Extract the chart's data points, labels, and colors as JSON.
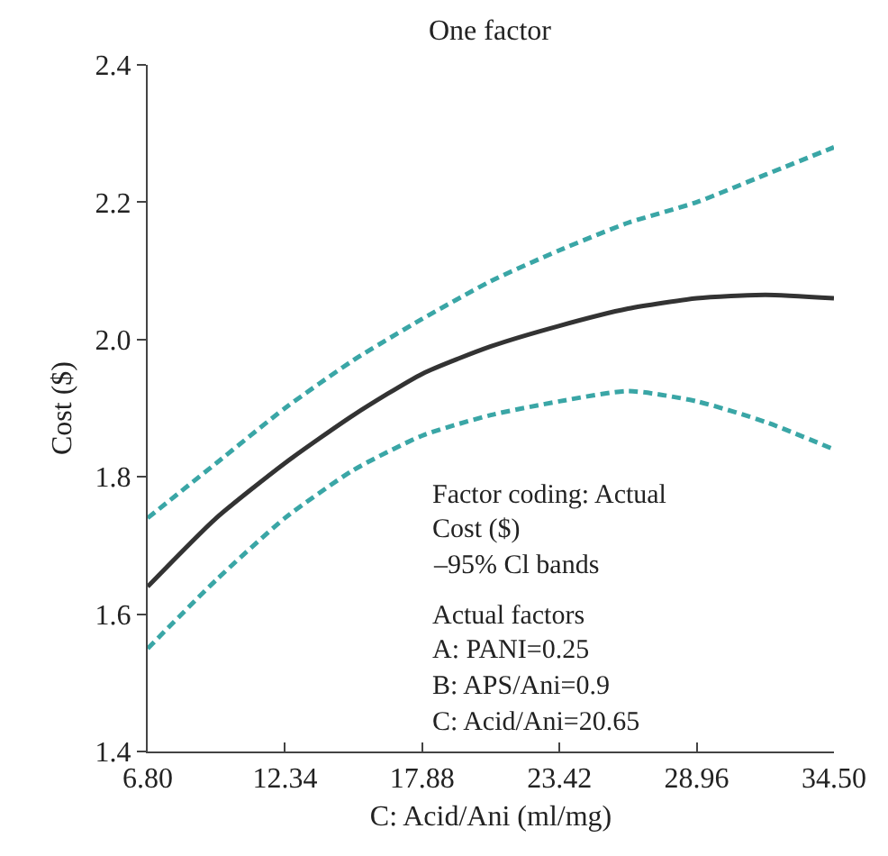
{
  "chart_data": {
    "type": "line",
    "title": "One factor",
    "xlabel": "C: Acid/Ani (ml/mg)",
    "ylabel": "Cost ($)",
    "x": [
      6.8,
      9.57,
      12.34,
      15.11,
      17.88,
      20.65,
      23.42,
      26.19,
      28.96,
      31.73,
      34.5
    ],
    "series": [
      {
        "color": "#333333",
        "line_style": "solid",
        "values": [
          1.64,
          1.74,
          1.82,
          1.89,
          1.95,
          1.99,
          2.02,
          2.045,
          2.06,
          2.065,
          2.06
        ]
      },
      {
        "color": "#3aa6a6",
        "line_style": "dashed",
        "values": [
          1.74,
          1.82,
          1.9,
          1.97,
          2.03,
          2.085,
          2.13,
          2.17,
          2.2,
          2.24,
          2.28
        ]
      },
      {
        "color": "#3aa6a6",
        "line_style": "dashed",
        "values": [
          1.55,
          1.65,
          1.74,
          1.81,
          1.86,
          1.89,
          1.91,
          1.925,
          1.91,
          1.88,
          1.84
        ]
      }
    ],
    "xlim": [
      6.8,
      34.5
    ],
    "xticks": [
      {
        "value": 6.8,
        "label": "6.80"
      },
      12.34,
      17.88,
      23.42,
      28.96,
      {
        "value": 34.5,
        "label": "34.50"
      }
    ],
    "ylim": [
      1.4,
      2.4
    ],
    "yticks": [
      1.4,
      1.6,
      1.8,
      {
        "value": 2,
        "label": "2.0"
      },
      2.2,
      2.4
    ],
    "grid": false,
    "marker": "none",
    "annotations": [
      "Factor coding: Actual",
      "Cost ($)",
      "–95% Cl bands",
      "Actual factors",
      "A: PANI=0.25",
      "B: APS/Ani=0.9",
      "C: Acid/Ani=20.65"
    ]
  }
}
